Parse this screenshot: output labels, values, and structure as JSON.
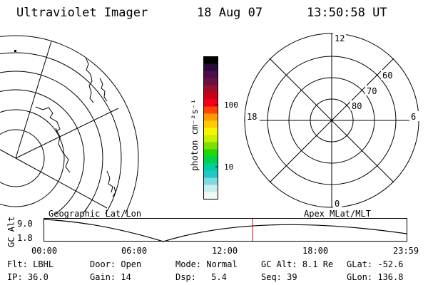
{
  "header": {
    "title": "Ultraviolet Imager",
    "date": "18 Aug 07",
    "time": "13:50:58 UT"
  },
  "colorbar": {
    "unit_label": "photon cm⁻²s⁻¹",
    "ticks": [
      "100",
      "10"
    ],
    "colors": [
      "#000000",
      "#2a0a3a",
      "#4a0f4a",
      "#6a1040",
      "#9a0f2a",
      "#cc0018",
      "#f4001c",
      "#ff4600",
      "#ff9a00",
      "#ffcc00",
      "#f5f500",
      "#c8f000",
      "#7ee000",
      "#1ed800",
      "#00d050",
      "#00d0a0",
      "#20c8c8",
      "#80d8e0",
      "#c8eef0",
      "#f0f8fa"
    ]
  },
  "polar_plot": {
    "labels_mlt": [
      "12",
      "6",
      "0",
      "18"
    ],
    "labels_lat": [
      "60",
      "70",
      "80"
    ]
  },
  "timeline": {
    "left_title": "Geographic Lat/Lon",
    "right_title": "Apex MLat/MLT",
    "yaxis_label": "GC Alt",
    "y_ticks": [
      "9.0",
      "1.8"
    ],
    "x_ticks": [
      "00:00",
      "06:00",
      "12:00",
      "18:00",
      "23:59"
    ],
    "current_marker_color": "#e00000"
  },
  "status": {
    "flt": {
      "label": "Flt:",
      "value": "LBHL"
    },
    "ip": {
      "label": "IP:",
      "value": "36.0"
    },
    "door": {
      "label": "Door:",
      "value": "Open"
    },
    "gain": {
      "label": "Gain:",
      "value": "14"
    },
    "mode": {
      "label": "Mode:",
      "value": "Normal"
    },
    "dsp": {
      "label": "Dsp:",
      "value": "5.4"
    },
    "gcalt": {
      "label": "GC Alt:",
      "value": "8.1 Re"
    },
    "seq": {
      "label": "Seq:",
      "value": "39"
    },
    "glat": {
      "label": "GLat:",
      "value": "-52.6"
    },
    "glon": {
      "label": "GLon:",
      "value": "136.8"
    }
  }
}
